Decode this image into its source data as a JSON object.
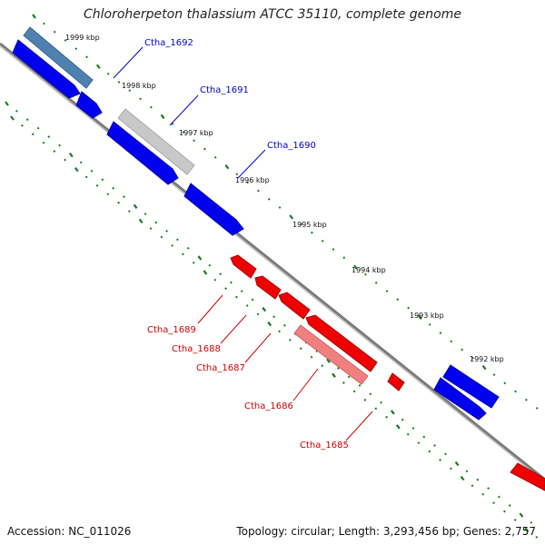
{
  "title": "Chloroherpeton thalassium ATCC 35110, complete genome",
  "footer": {
    "accession": "Accession: NC_011026",
    "summary": "Topology: circular; Length: 3,293,456 bp; Genes: 2,757"
  },
  "colors": {
    "forward": "#0000ee",
    "reverse": "#ee0000",
    "highlight_forward": "#4f81b0",
    "highlight_gray": "#c8c8c8",
    "highlight_reverse": "#f08080",
    "backbone": "#7a7a7a",
    "ticks": "#1a7a1a"
  },
  "scale": {
    "labels": [
      "1999 kbp",
      "1998 kbp",
      "1997 kbp",
      "1996 kbp",
      "1995 kbp",
      "1994 kbp",
      "1993 kbp",
      "1992 kbp"
    ]
  },
  "gene_labels": {
    "forward": [
      "Ctha_1692",
      "Ctha_1691",
      "Ctha_1690"
    ],
    "reverse": [
      "Ctha_1689",
      "Ctha_1688",
      "Ctha_1687",
      "Ctha_1686",
      "Ctha_1685"
    ]
  }
}
